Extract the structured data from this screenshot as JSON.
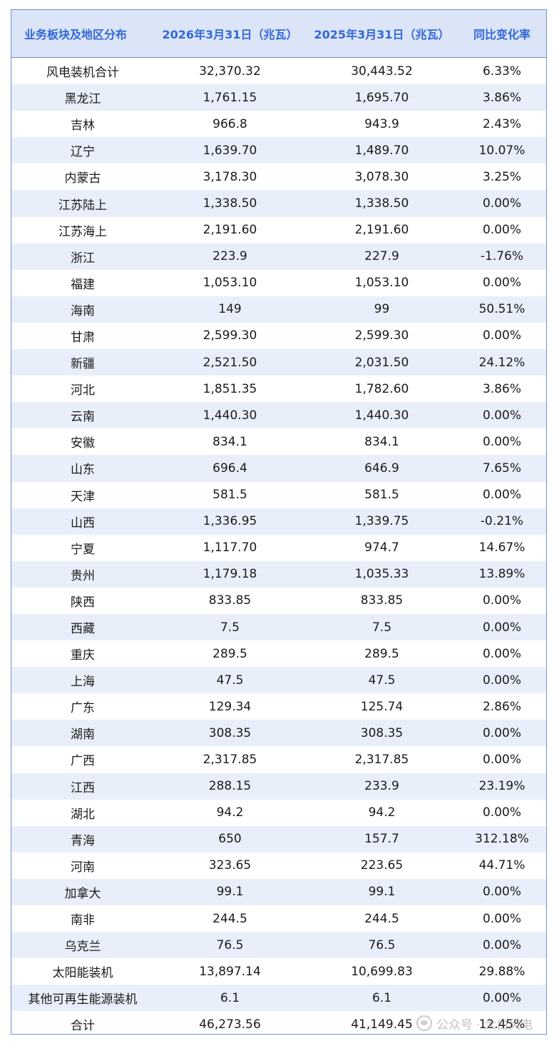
{
  "table": {
    "headers": [
      "业务板块及地区分布",
      "2026年3月31日（兆瓦）",
      "2025年3月31日（兆瓦）",
      "同比变化率"
    ],
    "rows": [
      [
        "风电装机合计",
        "32,370.32",
        "30,443.52",
        "6.33%"
      ],
      [
        "黑龙江",
        "1,761.15",
        "1,695.70",
        "3.86%"
      ],
      [
        "吉林",
        "966.8",
        "943.9",
        "2.43%"
      ],
      [
        "辽宁",
        "1,639.70",
        "1,489.70",
        "10.07%"
      ],
      [
        "内蒙古",
        "3,178.30",
        "3,078.30",
        "3.25%"
      ],
      [
        "江苏陆上",
        "1,338.50",
        "1,338.50",
        "0.00%"
      ],
      [
        "江苏海上",
        "2,191.60",
        "2,191.60",
        "0.00%"
      ],
      [
        "浙江",
        "223.9",
        "227.9",
        "-1.76%"
      ],
      [
        "福建",
        "1,053.10",
        "1,053.10",
        "0.00%"
      ],
      [
        "海南",
        "149",
        "99",
        "50.51%"
      ],
      [
        "甘肃",
        "2,599.30",
        "2,599.30",
        "0.00%"
      ],
      [
        "新疆",
        "2,521.50",
        "2,031.50",
        "24.12%"
      ],
      [
        "河北",
        "1,851.35",
        "1,782.60",
        "3.86%"
      ],
      [
        "云南",
        "1,440.30",
        "1,440.30",
        "0.00%"
      ],
      [
        "安徽",
        "834.1",
        "834.1",
        "0.00%"
      ],
      [
        "山东",
        "696.4",
        "646.9",
        "7.65%"
      ],
      [
        "天津",
        "581.5",
        "581.5",
        "0.00%"
      ],
      [
        "山西",
        "1,336.95",
        "1,339.75",
        "-0.21%"
      ],
      [
        "宁夏",
        "1,117.70",
        "974.7",
        "14.67%"
      ],
      [
        "贵州",
        "1,179.18",
        "1,035.33",
        "13.89%"
      ],
      [
        "陕西",
        "833.85",
        "833.85",
        "0.00%"
      ],
      [
        "西藏",
        "7.5",
        "7.5",
        "0.00%"
      ],
      [
        "重庆",
        "289.5",
        "289.5",
        "0.00%"
      ],
      [
        "上海",
        "47.5",
        "47.5",
        "0.00%"
      ],
      [
        "广东",
        "129.34",
        "125.74",
        "2.86%"
      ],
      [
        "湖南",
        "308.35",
        "308.35",
        "0.00%"
      ],
      [
        "广西",
        "2,317.85",
        "2,317.85",
        "0.00%"
      ],
      [
        "江西",
        "288.15",
        "233.9",
        "23.19%"
      ],
      [
        "湖北",
        "94.2",
        "94.2",
        "0.00%"
      ],
      [
        "青海",
        "650",
        "157.7",
        "312.18%"
      ],
      [
        "河南",
        "323.65",
        "223.65",
        "44.71%"
      ],
      [
        "加拿大",
        "99.1",
        "99.1",
        "0.00%"
      ],
      [
        "南非",
        "244.5",
        "244.5",
        "0.00%"
      ],
      [
        "乌克兰",
        "76.5",
        "76.5",
        "0.00%"
      ],
      [
        "太阳能装机",
        "13,897.14",
        "10,699.83",
        "29.88%"
      ],
      [
        "其他可再生能源装机",
        "6.1",
        "6.1",
        "0.00%"
      ],
      [
        "合计",
        "46,273.56",
        "41,149.45",
        "12.45%"
      ]
    ]
  },
  "watermark": {
    "text": "公众号 · 大白风电"
  },
  "colors": {
    "header_bg": "#dbe5f7",
    "header_text": "#3367d6",
    "stripe": "#e9effa",
    "border": "#6f8fd6"
  }
}
